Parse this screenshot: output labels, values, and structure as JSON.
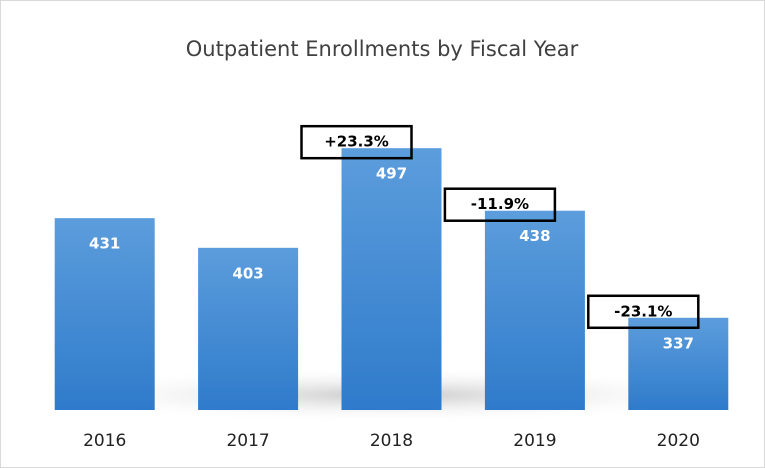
{
  "chart_data": {
    "type": "bar",
    "title": "Outpatient Enrollments by Fiscal Year",
    "categories": [
      "2016",
      "2017",
      "2018",
      "2019",
      "2020"
    ],
    "values": [
      431,
      403,
      497,
      438,
      337
    ],
    "annotations": [
      null,
      null,
      "+23.3%",
      "-11.9%",
      "-23.1%"
    ],
    "color": "#4a8fd8",
    "ylim": [
      250,
      500
    ]
  }
}
